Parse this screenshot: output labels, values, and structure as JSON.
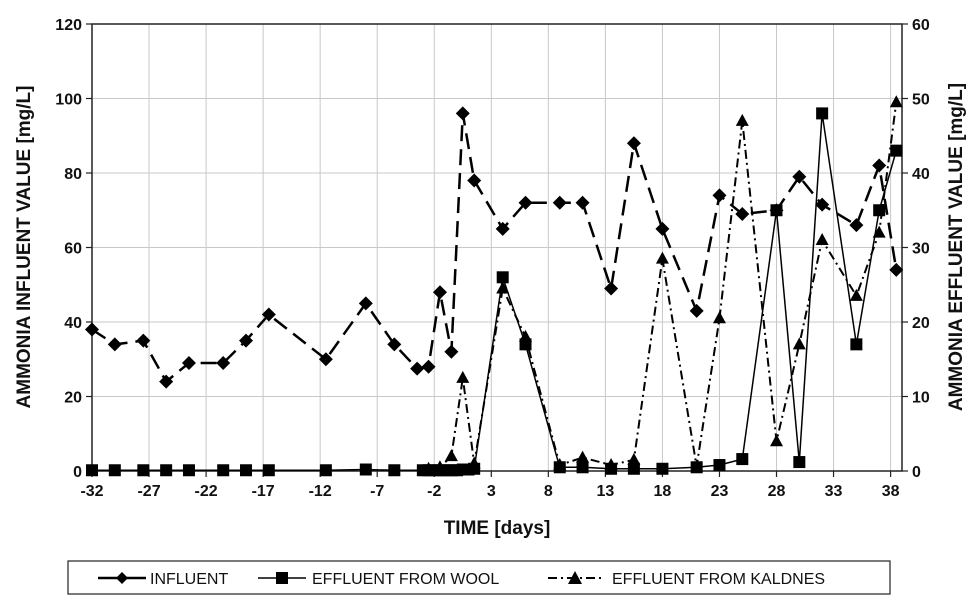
{
  "chart_data": {
    "type": "line",
    "xlabel": "TIME  [days]",
    "ylabel_left": "AMMONIA INFLUENT VALUE [mg/L]",
    "ylabel_right": "AMMONIA EFFLUENT VALUE  [mg/L]",
    "xlim": [
      -32,
      39
    ],
    "ylim_left": [
      0,
      120
    ],
    "ylim_right": [
      0,
      60
    ],
    "x_ticks": [
      -32,
      -27,
      -22,
      -17,
      -12,
      -7,
      -2,
      3,
      8,
      13,
      18,
      23,
      28,
      33,
      38
    ],
    "y_ticks_left": [
      0,
      20,
      40,
      60,
      80,
      100,
      120
    ],
    "y_ticks_right": [
      0,
      10,
      20,
      30,
      40,
      50,
      60
    ],
    "grid": true,
    "legend_position": "bottom",
    "series": [
      {
        "name": "INFLUENT",
        "axis": "left",
        "marker": "diamond",
        "line_style": "dashed",
        "color": "#000000",
        "points": [
          [
            -32,
            38
          ],
          [
            -30,
            34
          ],
          [
            -27.5,
            35
          ],
          [
            -25.5,
            24
          ],
          [
            -23.5,
            29
          ],
          [
            -20.5,
            29
          ],
          [
            -18.5,
            35
          ],
          [
            -16.5,
            42
          ],
          [
            -11.5,
            30
          ],
          [
            -8,
            45
          ],
          [
            -5.5,
            34
          ],
          [
            -3.5,
            27.5
          ],
          [
            -2.5,
            28
          ],
          [
            -1.5,
            48
          ],
          [
            -0.5,
            32
          ],
          [
            0.5,
            96
          ],
          [
            1.5,
            78
          ],
          [
            4,
            65
          ],
          [
            6,
            72
          ],
          [
            9,
            72
          ],
          [
            11,
            72
          ],
          [
            13.5,
            49
          ],
          [
            15.5,
            88
          ],
          [
            18,
            65
          ],
          [
            21,
            43
          ],
          [
            23,
            74
          ],
          [
            25,
            69
          ],
          [
            28,
            70
          ],
          [
            30,
            79
          ],
          [
            32,
            71.5
          ],
          [
            35,
            66
          ],
          [
            37,
            82
          ],
          [
            38.5,
            54
          ]
        ]
      },
      {
        "name": "EFFLUENT FROM WOOL",
        "axis": "right",
        "marker": "square",
        "line_style": "solid",
        "color": "#000000",
        "points": [
          [
            -32,
            0.1
          ],
          [
            -30,
            0.1
          ],
          [
            -27.5,
            0.1
          ],
          [
            -25.5,
            0.1
          ],
          [
            -23.5,
            0.1
          ],
          [
            -20.5,
            0.1
          ],
          [
            -18.5,
            0.1
          ],
          [
            -16.5,
            0.1
          ],
          [
            -11.5,
            0.1
          ],
          [
            -8,
            0.2
          ],
          [
            -5.5,
            0.1
          ],
          [
            -3,
            0.1
          ],
          [
            -2.5,
            0.1
          ],
          [
            -2,
            0.1
          ],
          [
            -1.5,
            0.1
          ],
          [
            -1,
            0.1
          ],
          [
            -0.5,
            0.1
          ],
          [
            0,
            0.1
          ],
          [
            0.5,
            0.2
          ],
          [
            1,
            0.2
          ],
          [
            1.5,
            0.3
          ],
          [
            4,
            26
          ],
          [
            6,
            17
          ],
          [
            9,
            0.5
          ],
          [
            11,
            0.5
          ],
          [
            13.5,
            0.3
          ],
          [
            15.5,
            0.3
          ],
          [
            18,
            0.3
          ],
          [
            21,
            0.5
          ],
          [
            23,
            0.8
          ],
          [
            25,
            1.6
          ],
          [
            28,
            35
          ],
          [
            30,
            1.2
          ],
          [
            32,
            48
          ],
          [
            35,
            17
          ],
          [
            37,
            35
          ],
          [
            38.5,
            43
          ]
        ]
      },
      {
        "name": "EFFLUENT FROM KALDNES",
        "axis": "right",
        "marker": "triangle",
        "line_style": "dashdot",
        "color": "#000000",
        "points": [
          [
            -2.5,
            0.3
          ],
          [
            -1.5,
            0.5
          ],
          [
            -0.5,
            2
          ],
          [
            0.5,
            12.5
          ],
          [
            1.5,
            1
          ],
          [
            4,
            24.5
          ],
          [
            6,
            18
          ],
          [
            9,
            0.8
          ],
          [
            11,
            1.8
          ],
          [
            13.5,
            0.8
          ],
          [
            15.5,
            1.5
          ],
          [
            18,
            28.5
          ],
          [
            21,
            0.6
          ],
          [
            23,
            20.5
          ],
          [
            25,
            47
          ],
          [
            28,
            4
          ],
          [
            30,
            17
          ],
          [
            32,
            31
          ],
          [
            35,
            23.5
          ],
          [
            37,
            32
          ],
          [
            38.5,
            49.5
          ]
        ]
      }
    ]
  },
  "legend": {
    "items": [
      {
        "label": "INFLUENT",
        "marker": "diamond"
      },
      {
        "label": "EFFLUENT FROM WOOL",
        "marker": "square"
      },
      {
        "label": "EFFLUENT FROM KALDNES",
        "marker": "triangle"
      }
    ]
  }
}
